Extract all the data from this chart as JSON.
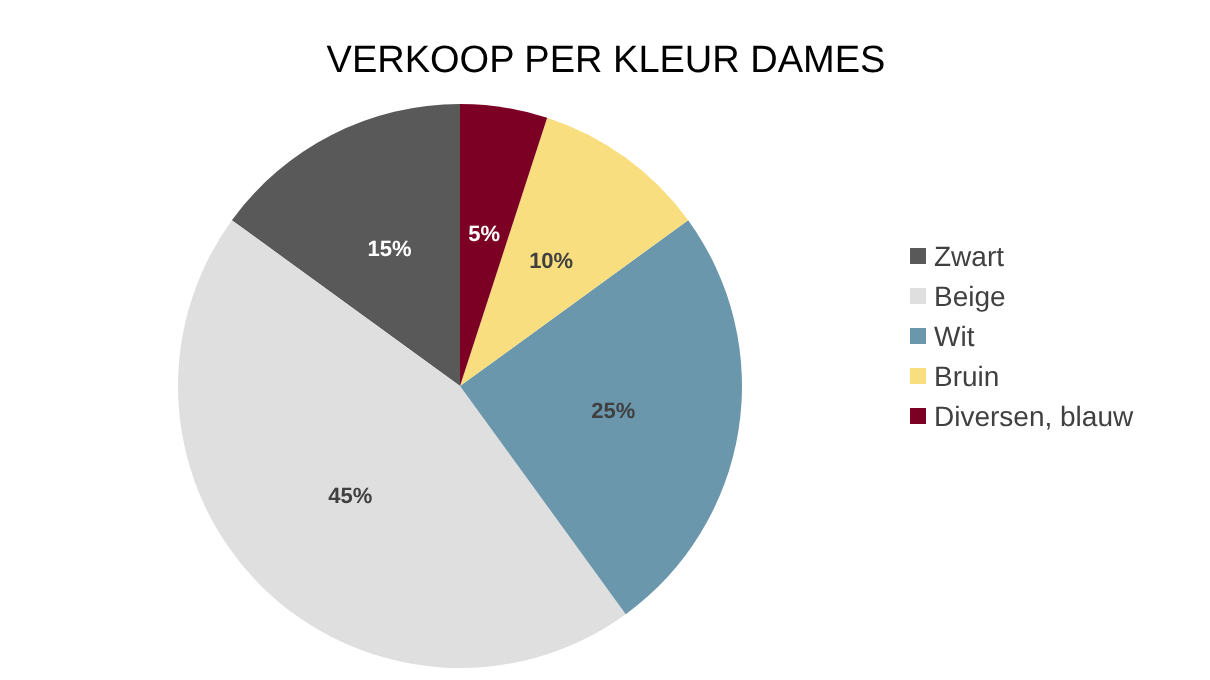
{
  "chart_data": {
    "type": "pie",
    "title": "VERKOOP PER KLEUR DAMES",
    "categories": [
      "Zwart",
      "Beige",
      "Wit",
      "Bruin",
      "Diversen, blauw"
    ],
    "values": [
      15,
      45,
      25,
      10,
      5
    ],
    "value_labels": [
      "15%",
      "45%",
      "25%",
      "10%",
      "5%"
    ],
    "colors": [
      "#595959",
      "#dfdfdf",
      "#6b97ad",
      "#f8de7e",
      "#7b0024"
    ],
    "legend": "right"
  }
}
